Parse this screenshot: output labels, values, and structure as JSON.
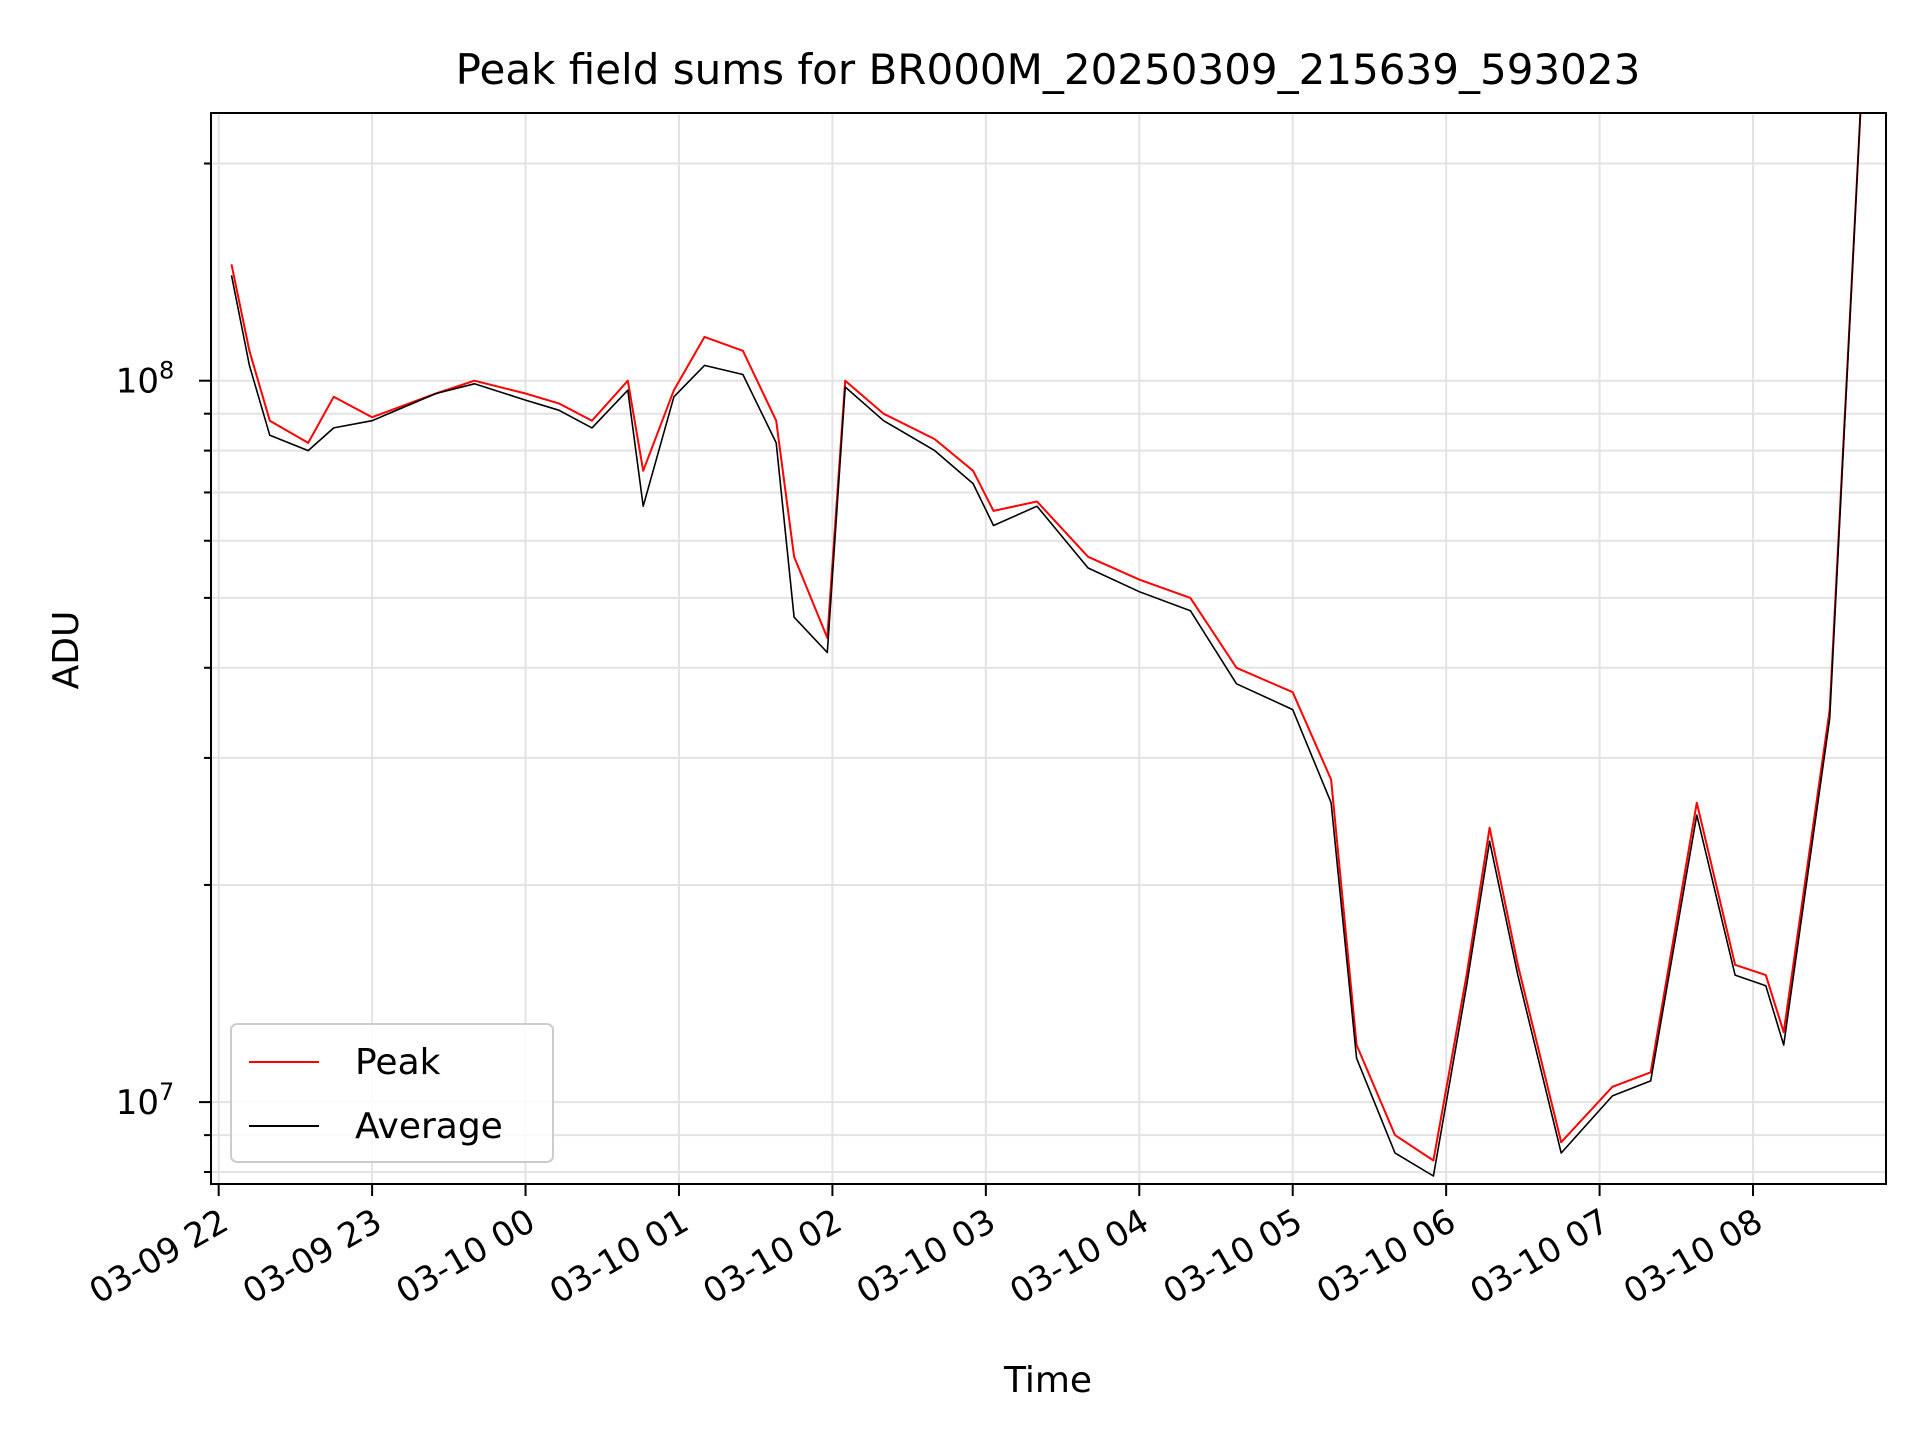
{
  "chart_data": {
    "type": "line",
    "title": "Peak field sums for BR000M_20250309_215639_593023",
    "xlabel": "Time",
    "ylabel": "ADU",
    "x_unit": "datetime",
    "xlim": [
      "2025-03-09 21:57",
      "2025-03-10 08:52"
    ],
    "ylim": [
      7700000,
      235000000
    ],
    "y_scale": "log",
    "grid": true,
    "legend_position": "lower-left",
    "x_ticks": [
      "2025-03-09 22:00",
      "2025-03-09 23:00",
      "2025-03-10 00:00",
      "2025-03-10 01:00",
      "2025-03-10 02:00",
      "2025-03-10 03:00",
      "2025-03-10 04:00",
      "2025-03-10 05:00",
      "2025-03-10 06:00",
      "2025-03-10 07:00",
      "2025-03-10 08:00"
    ],
    "x_tick_labels": [
      "03-09 22",
      "03-09 23",
      "03-10 00",
      "03-10 01",
      "03-10 02",
      "03-10 03",
      "03-10 04",
      "03-10 05",
      "03-10 06",
      "03-10 07",
      "03-10 08"
    ],
    "y_ticks": [
      10000000,
      100000000
    ],
    "y_tick_labels": [
      {
        "base": "10",
        "exp": "7"
      },
      {
        "base": "10",
        "exp": "8"
      }
    ],
    "series": [
      {
        "name": "Peak",
        "color": "#ff0000",
        "x": [
          "2025-03-09 22:05",
          "2025-03-09 22:12",
          "2025-03-09 22:20",
          "2025-03-09 22:35",
          "2025-03-09 22:45",
          "2025-03-09 23:00",
          "2025-03-09 23:25",
          "2025-03-09 23:40",
          "2025-03-10 00:00",
          "2025-03-10 00:13",
          "2025-03-10 00:26",
          "2025-03-10 00:40",
          "2025-03-10 00:46",
          "2025-03-10 00:58",
          "2025-03-10 01:10",
          "2025-03-10 01:25",
          "2025-03-10 01:38",
          "2025-03-10 01:45",
          "2025-03-10 01:58",
          "2025-03-10 02:05",
          "2025-03-10 02:20",
          "2025-03-10 02:40",
          "2025-03-10 02:55",
          "2025-03-10 03:03",
          "2025-03-10 03:20",
          "2025-03-10 03:40",
          "2025-03-10 04:00",
          "2025-03-10 04:20",
          "2025-03-10 04:38",
          "2025-03-10 05:00",
          "2025-03-10 05:15",
          "2025-03-10 05:25",
          "2025-03-10 05:40",
          "2025-03-10 05:55",
          "2025-03-10 06:08",
          "2025-03-10 06:17",
          "2025-03-10 06:28",
          "2025-03-10 06:45",
          "2025-03-10 07:05",
          "2025-03-10 07:20",
          "2025-03-10 07:38",
          "2025-03-10 07:53",
          "2025-03-10 08:05",
          "2025-03-10 08:12",
          "2025-03-10 08:30",
          "2025-03-10 08:42"
        ],
        "y": [
          145000000,
          110000000,
          88000000,
          82000000,
          95000000,
          89000000,
          96000000,
          100000000,
          96000000,
          93000000,
          88000000,
          100000000,
          75000000,
          97000000,
          115000000,
          110000000,
          88000000,
          57000000,
          44000000,
          100000000,
          90000000,
          83000000,
          75000000,
          66000000,
          68000000,
          57000000,
          53000000,
          50000000,
          40000000,
          37000000,
          28000000,
          12000000,
          9000000,
          8300000,
          15000000,
          24000000,
          15500000,
          8800000,
          10500000,
          11000000,
          26000000,
          15500000,
          15000000,
          12500000,
          35000000,
          235000000
        ]
      },
      {
        "name": "Average",
        "color": "#000000",
        "x": [
          "2025-03-09 22:05",
          "2025-03-09 22:12",
          "2025-03-09 22:20",
          "2025-03-09 22:35",
          "2025-03-09 22:45",
          "2025-03-09 23:00",
          "2025-03-09 23:25",
          "2025-03-09 23:40",
          "2025-03-10 00:00",
          "2025-03-10 00:13",
          "2025-03-10 00:26",
          "2025-03-10 00:40",
          "2025-03-10 00:46",
          "2025-03-10 00:58",
          "2025-03-10 01:10",
          "2025-03-10 01:25",
          "2025-03-10 01:38",
          "2025-03-10 01:45",
          "2025-03-10 01:58",
          "2025-03-10 02:05",
          "2025-03-10 02:20",
          "2025-03-10 02:40",
          "2025-03-10 02:55",
          "2025-03-10 03:03",
          "2025-03-10 03:20",
          "2025-03-10 03:40",
          "2025-03-10 04:00",
          "2025-03-10 04:20",
          "2025-03-10 04:38",
          "2025-03-10 05:00",
          "2025-03-10 05:15",
          "2025-03-10 05:25",
          "2025-03-10 05:40",
          "2025-03-10 05:55",
          "2025-03-10 06:08",
          "2025-03-10 06:17",
          "2025-03-10 06:28",
          "2025-03-10 06:45",
          "2025-03-10 07:05",
          "2025-03-10 07:20",
          "2025-03-10 07:38",
          "2025-03-10 07:53",
          "2025-03-10 08:05",
          "2025-03-10 08:12",
          "2025-03-10 08:30",
          "2025-03-10 08:42"
        ],
        "y": [
          140000000,
          105000000,
          84000000,
          80000000,
          86000000,
          88000000,
          96000000,
          99000000,
          94000000,
          91000000,
          86000000,
          97000000,
          67000000,
          95000000,
          105000000,
          102000000,
          82000000,
          47000000,
          42000000,
          98000000,
          88000000,
          80000000,
          72000000,
          63000000,
          67000000,
          55000000,
          51000000,
          48000000,
          38000000,
          35000000,
          26000000,
          11500000,
          8500000,
          7900000,
          14500000,
          23000000,
          15000000,
          8500000,
          10200000,
          10700000,
          25000000,
          15000000,
          14500000,
          12000000,
          34000000,
          235000000
        ]
      }
    ]
  }
}
